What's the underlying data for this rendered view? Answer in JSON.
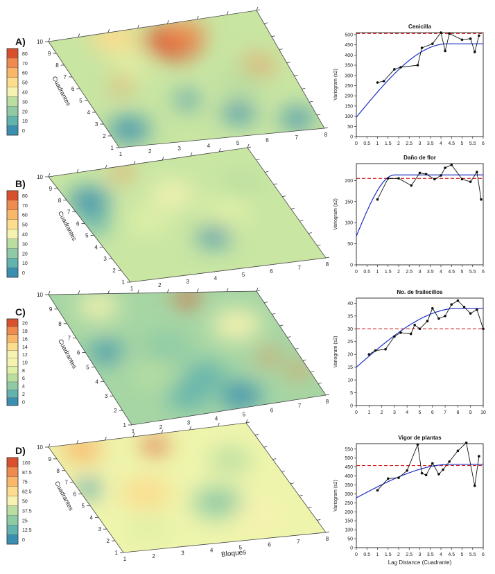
{
  "palette": [
    "#3a8fb0",
    "#62b2ad",
    "#8fcaa5",
    "#b9dea0",
    "#dff0a6",
    "#f6f3b0",
    "#fcdc8d",
    "#f9b76a",
    "#f08b4f",
    "#d9502e"
  ],
  "axes_common": {
    "y_axis_title": "Cuadrantes",
    "x_axis_title": "Bloques",
    "y_ticks": [
      "1",
      "2",
      "3",
      "4",
      "5",
      "6",
      "7",
      "8",
      "9",
      "10"
    ],
    "x_ticks": [
      "1",
      "2",
      "3",
      "4",
      "5",
      "6",
      "7",
      "8"
    ],
    "vario_ylabel": "Variogram (s2)",
    "vario_xlabel": "Lag Distance (Cuadrante)"
  },
  "maps": [
    {
      "letter": "A)",
      "legend": [
        "0",
        "10",
        "20",
        "30",
        "40",
        "50",
        "60",
        "70",
        "80"
      ]
    },
    {
      "letter": "B)",
      "legend": [
        "0",
        "10",
        "20",
        "30",
        "40",
        "50",
        "60",
        "70",
        "80"
      ]
    },
    {
      "letter": "C)",
      "legend": [
        "0",
        "2",
        "4",
        "6",
        "8",
        "10",
        "12",
        "14",
        "16",
        "18",
        "20"
      ]
    },
    {
      "letter": "D)",
      "legend": [
        "0",
        "12.5",
        "25",
        "37.5",
        "50",
        "62.5",
        "75",
        "87.5",
        "100"
      ]
    }
  ],
  "chart_data": [
    {
      "type": "line",
      "title": "Cenicilla",
      "ylabel": "Variogram (s2)",
      "xlim": [
        0,
        6
      ],
      "ylim": [
        0,
        510
      ],
      "xticks": [
        "0",
        "0.5",
        "1",
        "1.5",
        "2",
        "2.5",
        "3",
        "3.5",
        "4",
        "4.5",
        "5",
        "5.5",
        "6"
      ],
      "yticks": [
        "0",
        "50",
        "100",
        "150",
        "200",
        "250",
        "300",
        "350",
        "400",
        "450",
        "500"
      ],
      "x": [
        1,
        1.3,
        1.8,
        2.1,
        2.9,
        3.1,
        3.6,
        4.0,
        4.2,
        4.4,
        5.0,
        5.4,
        5.6,
        5.8
      ],
      "y": [
        265,
        272,
        330,
        340,
        350,
        435,
        455,
        510,
        420,
        505,
        475,
        480,
        415,
        495
      ],
      "sill": 505,
      "model": {
        "nugget": 95,
        "sill": 455,
        "range": 4.3
      }
    },
    {
      "type": "line",
      "title": "Daño de flor",
      "ylabel": "Variogram (s2)",
      "xlim": [
        0,
        6
      ],
      "ylim": [
        0,
        240
      ],
      "xticks": [
        "0",
        "0.5",
        "1",
        "1.5",
        "2",
        "2.5",
        "3",
        "3.5",
        "4",
        "4.5",
        "5",
        "5.5",
        "6"
      ],
      "yticks": [
        "0",
        "50",
        "100",
        "150",
        "200"
      ],
      "x": [
        1,
        1.5,
        2,
        2.6,
        3,
        3.3,
        3.7,
        4,
        4.2,
        4.5,
        5,
        5.4,
        5.7,
        5.9
      ],
      "y": [
        155,
        205,
        205,
        188,
        218,
        215,
        203,
        212,
        230,
        237,
        203,
        197,
        220,
        155
      ],
      "sill": 205,
      "model": {
        "nugget": 68,
        "sill": 213,
        "range": 1.8
      }
    },
    {
      "type": "line",
      "title": "No. de frailecillos",
      "ylabel": "Variogram (s2)",
      "xlim": [
        0,
        10
      ],
      "ylim": [
        0,
        42
      ],
      "xticks": [
        "0",
        "1",
        "2",
        "3",
        "4",
        "5",
        "6",
        "7",
        "8",
        "9",
        "10"
      ],
      "yticks": [
        "0",
        "5",
        "10",
        "15",
        "20",
        "25",
        "30",
        "35",
        "40"
      ],
      "x": [
        1,
        1.5,
        2.3,
        3,
        3.5,
        4.3,
        4.6,
        5,
        5.6,
        6,
        6.5,
        7,
        7.5,
        8,
        8.5,
        9,
        9.5,
        10
      ],
      "y": [
        20,
        21.5,
        22,
        27,
        28.5,
        28,
        31.5,
        30,
        33,
        38,
        34,
        35,
        39.5,
        41,
        38.5,
        36,
        37.5,
        30
      ],
      "sill": 30,
      "model": {
        "nugget": 15,
        "sill": 38,
        "range": 8
      }
    },
    {
      "type": "line",
      "title": "Vigor de plantas",
      "ylabel": "Variogram (s2)",
      "xlabel": "Lag Distance (Cuadrante)",
      "xlim": [
        0,
        6
      ],
      "ylim": [
        0,
        580
      ],
      "xticks": [
        "0",
        "0.5",
        "1",
        "1.5",
        "2",
        "2.5",
        "3",
        "3.5",
        "4",
        "4.5",
        "5",
        "5.5",
        "6"
      ],
      "yticks": [
        "0",
        "50",
        "100",
        "150",
        "200",
        "250",
        "300",
        "350",
        "400",
        "450",
        "500",
        "550"
      ],
      "x": [
        1,
        1.5,
        2,
        2.4,
        2.9,
        3.1,
        3.3,
        3.6,
        3.9,
        4.1,
        4.4,
        4.8,
        5.2,
        5.6,
        5.8
      ],
      "y": [
        320,
        385,
        390,
        430,
        575,
        415,
        405,
        470,
        410,
        435,
        480,
        540,
        585,
        345,
        510
      ],
      "sill": 458,
      "model": {
        "nugget": 278,
        "sill": 465,
        "range": 4.5
      }
    }
  ]
}
